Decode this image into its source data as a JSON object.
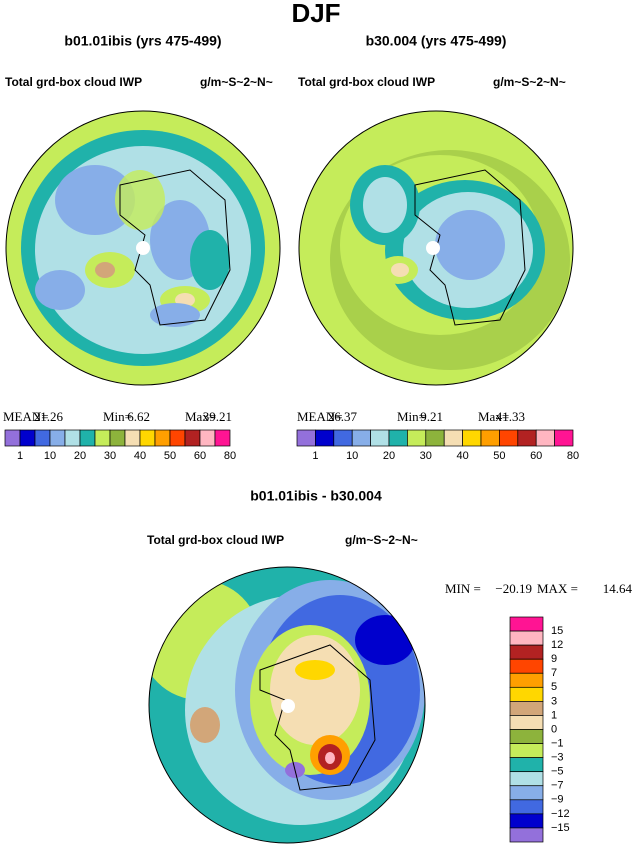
{
  "title": "DJF",
  "panels": [
    {
      "title": "b01.01ibis (yrs 475-499)",
      "variable": "Total grd-box cloud IWP",
      "units": "g/m~S~2~N~",
      "stats": [
        {
          "label": "MEAN=",
          "value": "21.26"
        },
        {
          "label": "Min=",
          "value": "6.62"
        },
        {
          "label": "Max=",
          "value": "39.21"
        }
      ]
    },
    {
      "title": "b30.004 (yrs 475-499)",
      "variable": "Total grd-box cloud IWP",
      "units": "g/m~S~2~N~",
      "stats": [
        {
          "label": "MEAN=",
          "value": "26.37"
        },
        {
          "label": "Min=",
          "value": "9.21"
        },
        {
          "label": "Max=",
          "value": "41.33"
        }
      ]
    }
  ],
  "colorbar": {
    "colors": [
      "#9370db",
      "#0000cd",
      "#4169e1",
      "#87aee8",
      "#b0e0e6",
      "#20b2aa",
      "#c5ec5a",
      "#8db33c",
      "#f5deb3",
      "#ffd700",
      "#ff9f00",
      "#ff4500",
      "#b22222",
      "#ffb6c1",
      "#ff1493"
    ],
    "labels": [
      "1",
      "10",
      "20",
      "30",
      "40",
      "50",
      "60",
      "80"
    ]
  },
  "difference": {
    "title": "b01.01ibis - b30.004",
    "variable": "Total grd-box cloud IWP",
    "units": "g/m~S~2~N~",
    "stats": [
      {
        "label": "MIN =",
        "value": "−20.19"
      },
      {
        "label": "MAX =",
        "value": "14.64"
      }
    ],
    "colorbar": {
      "colors": [
        "#ff1493",
        "#ffb6c1",
        "#b22222",
        "#ff4500",
        "#ff9f00",
        "#ffd700",
        "#d2a679",
        "#f5deb3",
        "#8db33c",
        "#c5ec5a",
        "#20b2aa",
        "#b0e0e6",
        "#87aee8",
        "#4169e1",
        "#0000cd",
        "#9370db"
      ],
      "labels": [
        "15",
        "12",
        "9",
        "7",
        "5",
        "3",
        "1",
        "0",
        "−1",
        "−3",
        "−5",
        "−7",
        "−9",
        "−12",
        "−15"
      ]
    }
  }
}
